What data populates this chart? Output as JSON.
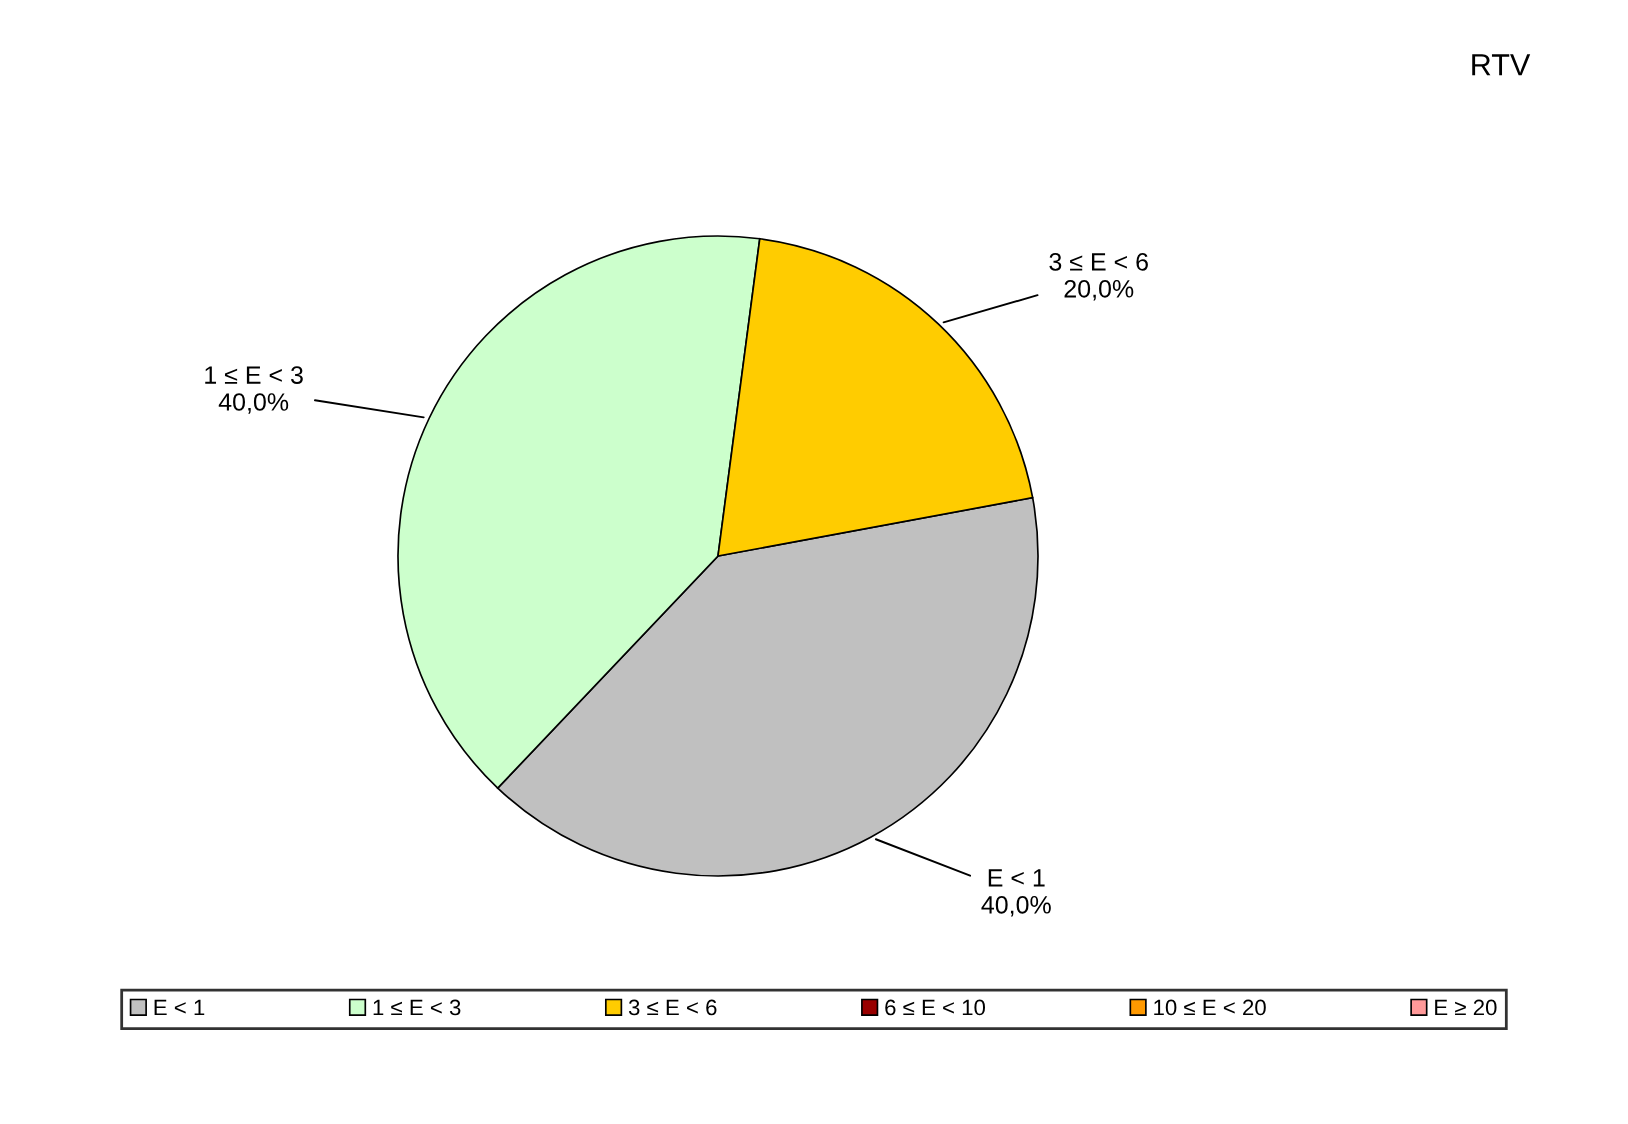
{
  "chart_data": {
    "type": "pie",
    "title": "RTV",
    "categories": [
      "E < 1",
      "1 ≤ E < 3",
      "3 ≤ E < 6",
      "6 ≤ E < 10",
      "10 ≤ E < 20",
      "E ≥ 20"
    ],
    "values": [
      40,
      40,
      20,
      0,
      0,
      0
    ],
    "value_labels": [
      "40,0%",
      "40,0%",
      "20,0%",
      null,
      null,
      null
    ],
    "colors": [
      "#c0c0c0",
      "#ccffcc",
      "#ffcc00",
      "#990000",
      "#ff9900",
      "#ff9999"
    ],
    "legend": "bottom"
  }
}
